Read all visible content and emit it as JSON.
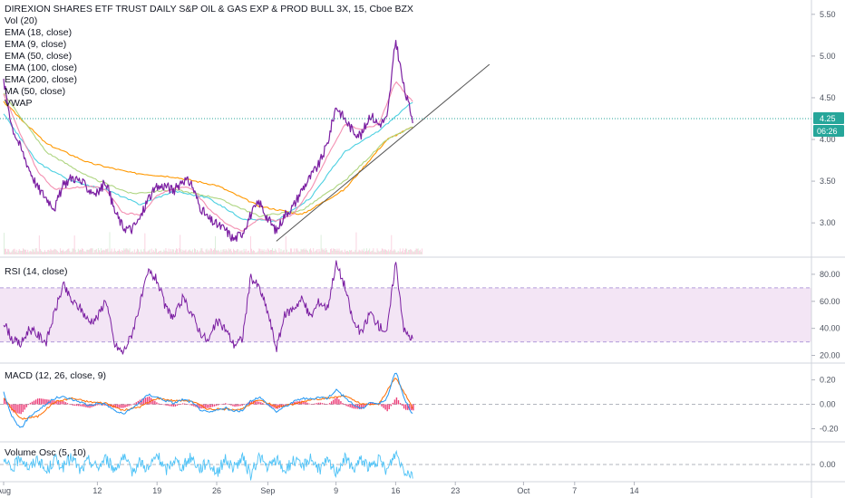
{
  "header": {
    "title": "DIREXION SHARES ETF TRUST DAILY S&P OIL & GAS EXP & PROD BULL 3X, 15, Cboe BZX"
  },
  "main_legend": [
    "Vol (20)",
    "EMA (18, close)",
    "EMA (9, close)",
    "EMA (50, close)",
    "EMA (100, close)",
    "EMA (200, close)",
    "MA (50, close)",
    "VWAP"
  ],
  "price_badge": {
    "last": "4.25",
    "countdown": "06:26",
    "color": "#26a69a"
  },
  "colors": {
    "ema18": "#f48fb1",
    "ema9": "#7b1fa2",
    "ema50": "#4dd0e1",
    "ema100": "#aed581",
    "ema200": "#fff176",
    "ma50": "#ff9800",
    "vwap": "#26c6da",
    "rsi": "#7b1fa2",
    "rsi_band": "#f3e5f5",
    "macd": "#2196f3",
    "signal": "#ff6d00",
    "hist": "#e91e63",
    "volosc": "#4fc3f7",
    "trend": "#555555"
  },
  "x_axis": {
    "labels": [
      {
        "text": "Aug",
        "day": 0
      },
      {
        "text": "12",
        "day": 11
      },
      {
        "text": "19",
        "day": 18
      },
      {
        "text": "26",
        "day": 25
      },
      {
        "text": "Sep",
        "day": 31
      },
      {
        "text": "9",
        "day": 39
      },
      {
        "text": "16",
        "day": 46
      },
      {
        "text": "23",
        "day": 53
      },
      {
        "text": "Oct",
        "day": 61
      },
      {
        "text": "7",
        "day": 67
      },
      {
        "text": "14",
        "day": 74
      }
    ]
  },
  "chart_data": [
    {
      "type": "line",
      "title": "DIREXION SHARES ETF TRUST DAILY S&P OIL & GAS EXP & PROD BULL 3X, 15, Cboe BZX",
      "x_unit": "trading day (Aug 1 = 0)",
      "ylim": [
        2.6,
        5.65
      ],
      "yticks": [
        3.0,
        3.5,
        4.0,
        4.5,
        5.0,
        5.5
      ],
      "grid": false,
      "legend_position": "top-left",
      "series": [
        {
          "name": "close",
          "x": [
            0,
            1,
            2,
            3,
            4,
            5,
            6,
            7,
            8,
            9,
            10,
            11,
            12,
            13,
            14,
            15,
            16,
            17,
            18,
            19,
            20,
            21,
            22,
            23,
            24,
            25,
            26,
            27,
            28,
            29,
            30,
            31,
            32,
            33,
            34,
            35,
            36,
            37,
            38,
            39,
            40,
            41,
            42,
            43,
            44,
            45,
            46,
            47,
            48
          ],
          "values": [
            4.7,
            4.15,
            3.9,
            3.65,
            3.42,
            3.3,
            3.18,
            3.45,
            3.55,
            3.5,
            3.4,
            3.35,
            3.5,
            3.15,
            2.95,
            2.92,
            3.05,
            3.3,
            3.42,
            3.45,
            3.38,
            3.52,
            3.48,
            3.2,
            3.05,
            2.98,
            2.92,
            2.8,
            2.88,
            3.1,
            3.25,
            3.05,
            2.9,
            3.1,
            3.2,
            3.4,
            3.55,
            3.7,
            3.95,
            4.4,
            4.25,
            4.1,
            4.05,
            4.3,
            4.18,
            4.25,
            5.2,
            4.6,
            4.25
          ]
        },
        {
          "name": "EMA (18, close)",
          "x": [
            0,
            2,
            4,
            6,
            8,
            10,
            12,
            14,
            16,
            18,
            20,
            22,
            24,
            26,
            28,
            30,
            32,
            34,
            36,
            38,
            40,
            42,
            44,
            46,
            48
          ],
          "values": [
            4.55,
            4.05,
            3.62,
            3.4,
            3.42,
            3.44,
            3.4,
            3.12,
            3.1,
            3.32,
            3.42,
            3.42,
            3.18,
            3.0,
            2.9,
            3.05,
            3.02,
            3.1,
            3.4,
            3.8,
            4.18,
            4.12,
            4.18,
            4.7,
            4.45
          ]
        },
        {
          "name": "EMA (50, close)",
          "x": [
            0,
            4,
            8,
            12,
            16,
            20,
            24,
            28,
            32,
            36,
            40,
            44,
            48
          ],
          "values": [
            4.3,
            3.72,
            3.5,
            3.4,
            3.22,
            3.38,
            3.3,
            3.05,
            3.02,
            3.3,
            3.85,
            4.1,
            4.45
          ]
        },
        {
          "name": "EMA (100, close)",
          "x": [
            0,
            5,
            10,
            15,
            20,
            25,
            30,
            35,
            40,
            45,
            48
          ],
          "values": [
            4.55,
            3.85,
            3.55,
            3.35,
            3.4,
            3.3,
            3.08,
            3.15,
            3.5,
            4.0,
            4.15
          ]
        },
        {
          "name": "MA (50, close)",
          "x": [
            0,
            5,
            10,
            15,
            20,
            25,
            30,
            35,
            40,
            45,
            48
          ],
          "values": [
            4.45,
            3.95,
            3.72,
            3.6,
            3.55,
            3.45,
            3.2,
            3.1,
            3.4,
            4.0,
            4.15
          ]
        }
      ],
      "trend_line": {
        "x": [
          32,
          57
        ],
        "values": [
          2.78,
          4.9
        ]
      },
      "last_price": 4.25
    },
    {
      "type": "line",
      "title": "RSI (14, close)",
      "ylim": [
        15,
        92
      ],
      "yticks": [
        20.0,
        40.0,
        60.0,
        80.0
      ],
      "band": [
        30,
        70
      ],
      "series": [
        {
          "name": "RSI (14, close)",
          "x": [
            0,
            1,
            2,
            3,
            4,
            5,
            6,
            7,
            8,
            9,
            10,
            11,
            12,
            13,
            14,
            15,
            16,
            17,
            18,
            19,
            20,
            21,
            22,
            23,
            24,
            25,
            26,
            27,
            28,
            29,
            30,
            31,
            32,
            33,
            34,
            35,
            36,
            37,
            38,
            39,
            40,
            41,
            42,
            43,
            44,
            45,
            46,
            47,
            48
          ],
          "values": [
            45,
            32,
            28,
            40,
            35,
            30,
            52,
            72,
            60,
            55,
            45,
            48,
            62,
            28,
            22,
            35,
            58,
            82,
            76,
            55,
            48,
            62,
            52,
            38,
            30,
            45,
            40,
            28,
            32,
            78,
            70,
            52,
            25,
            50,
            55,
            62,
            48,
            60,
            55,
            88,
            72,
            45,
            36,
            52,
            42,
            38,
            90,
            38,
            32
          ]
        }
      ]
    },
    {
      "type": "line",
      "title": "MACD (12, 26, close, 9)",
      "ylim": [
        -0.3,
        0.33
      ],
      "yticks": [
        -0.2,
        0.0,
        0.2
      ],
      "series": [
        {
          "name": "MACD",
          "x": [
            0,
            1,
            2,
            3,
            4,
            5,
            6,
            7,
            8,
            9,
            10,
            11,
            12,
            13,
            14,
            15,
            16,
            17,
            18,
            19,
            20,
            21,
            22,
            23,
            24,
            25,
            26,
            27,
            28,
            29,
            30,
            31,
            32,
            33,
            34,
            35,
            36,
            37,
            38,
            39,
            40,
            41,
            42,
            43,
            44,
            45,
            46,
            47,
            48
          ],
          "values": [
            0.1,
            -0.1,
            -0.2,
            -0.1,
            -0.05,
            0.0,
            0.05,
            0.06,
            0.04,
            0.02,
            -0.01,
            0.01,
            0.0,
            -0.05,
            -0.08,
            -0.04,
            0.02,
            0.08,
            0.06,
            0.03,
            0.01,
            0.04,
            0.02,
            -0.04,
            -0.07,
            -0.05,
            -0.03,
            -0.06,
            -0.05,
            0.03,
            0.06,
            0.0,
            -0.06,
            -0.02,
            0.02,
            0.05,
            0.04,
            0.06,
            0.05,
            0.12,
            0.06,
            0.0,
            -0.04,
            0.02,
            0.0,
            0.05,
            0.28,
            0.05,
            -0.08
          ]
        },
        {
          "name": "Signal",
          "x": [
            0,
            2,
            4,
            6,
            8,
            10,
            12,
            14,
            16,
            18,
            20,
            22,
            24,
            26,
            28,
            30,
            32,
            34,
            36,
            38,
            40,
            42,
            44,
            46,
            48
          ],
          "values": [
            0.05,
            -0.12,
            -0.1,
            0.02,
            0.05,
            0.02,
            0.01,
            -0.05,
            -0.02,
            0.05,
            0.03,
            0.03,
            -0.04,
            -0.04,
            -0.04,
            0.04,
            -0.02,
            0.0,
            0.04,
            0.05,
            0.07,
            0.0,
            0.0,
            0.22,
            -0.03
          ]
        }
      ]
    },
    {
      "type": "line",
      "title": "Volume Osc (5, 10)",
      "ylim": [
        -30,
        40
      ],
      "yticks": [
        0.0
      ],
      "series": [
        {
          "name": "Volume Osc (5, 10)",
          "x": [
            0,
            1,
            2,
            3,
            4,
            5,
            6,
            7,
            8,
            9,
            10,
            11,
            12,
            13,
            14,
            15,
            16,
            17,
            18,
            19,
            20,
            21,
            22,
            23,
            24,
            25,
            26,
            27,
            28,
            29,
            30,
            31,
            32,
            33,
            34,
            35,
            36,
            37,
            38,
            39,
            40,
            41,
            42,
            43,
            44,
            45,
            46,
            47,
            48
          ],
          "values": [
            5,
            -10,
            15,
            -8,
            12,
            -15,
            10,
            -5,
            14,
            -12,
            8,
            -6,
            12,
            -10,
            15,
            -14,
            6,
            -9,
            18,
            -12,
            10,
            -5,
            14,
            -8,
            6,
            -16,
            10,
            -7,
            12,
            -20,
            16,
            -8,
            10,
            -12,
            8,
            -5,
            14,
            -10,
            6,
            -14,
            12,
            -8,
            10,
            -6,
            8,
            -12,
            22,
            -10,
            -18
          ]
        }
      ]
    }
  ]
}
